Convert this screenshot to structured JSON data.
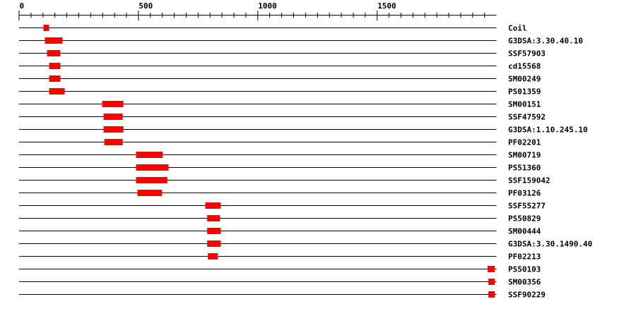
{
  "chart_data": {
    "type": "domain-map",
    "sequence_length": 2000,
    "axis": {
      "ticks_major": [
        0,
        500,
        1000,
        1500
      ],
      "tick_labels": [
        "0",
        "500",
        "1000",
        "1500"
      ],
      "minor_step": 50
    },
    "domain_color": "#ff0000",
    "tracks": [
      {
        "name": "Coil",
        "start": 102,
        "end": 126
      },
      {
        "name": "G3DSA:3.30.40.10",
        "start": 108,
        "end": 182
      },
      {
        "name": "SSF57903",
        "start": 117,
        "end": 173
      },
      {
        "name": "cd15568",
        "start": 126,
        "end": 173
      },
      {
        "name": "SM00249",
        "start": 126,
        "end": 173
      },
      {
        "name": "PS01359",
        "start": 126,
        "end": 191
      },
      {
        "name": "SM00151",
        "start": 348,
        "end": 437
      },
      {
        "name": "SSF47592",
        "start": 354,
        "end": 434
      },
      {
        "name": "G3DSA:1.10.245.10",
        "start": 354,
        "end": 437
      },
      {
        "name": "PF02201",
        "start": 357,
        "end": 434
      },
      {
        "name": "SM00719",
        "start": 490,
        "end": 602
      },
      {
        "name": "PS51360",
        "start": 490,
        "end": 626
      },
      {
        "name": "SSF159042",
        "start": 490,
        "end": 621
      },
      {
        "name": "PF03126",
        "start": 496,
        "end": 599
      },
      {
        "name": "SSF55277",
        "start": 780,
        "end": 845
      },
      {
        "name": "PS50829",
        "start": 788,
        "end": 842
      },
      {
        "name": "SM00444",
        "start": 788,
        "end": 845
      },
      {
        "name": "G3DSA:3.30.1490.40",
        "start": 788,
        "end": 845
      },
      {
        "name": "PF02213",
        "start": 791,
        "end": 833
      },
      {
        "name": "PS50103",
        "start": 1963,
        "end": 1993
      },
      {
        "name": "SM00356",
        "start": 1966,
        "end": 1993
      },
      {
        "name": "SSF90229",
        "start": 1966,
        "end": 1993
      }
    ]
  }
}
